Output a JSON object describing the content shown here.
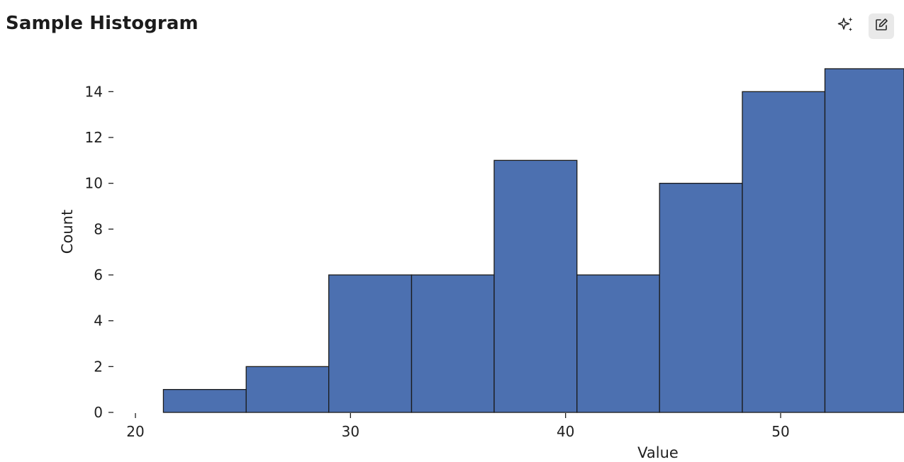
{
  "header": {
    "title": "Sample Histogram",
    "ai_button_icon": "sparkles-icon",
    "edit_button_icon": "edit-icon"
  },
  "chart_data": {
    "type": "bar",
    "title": "Sample Histogram",
    "xlabel": "Value",
    "ylabel": "Count",
    "bin_edges": [
      21.3,
      25.15,
      28.99,
      32.84,
      36.68,
      40.53,
      44.37,
      48.22,
      52.06,
      55.91
    ],
    "values": [
      1,
      2,
      6,
      6,
      11,
      6,
      10,
      14,
      15
    ],
    "xlim": [
      19.5,
      55.91
    ],
    "ylim": [
      0,
      15
    ],
    "xticks": [
      20,
      30,
      40,
      50
    ],
    "yticks": [
      0,
      2,
      4,
      6,
      8,
      10,
      12,
      14
    ],
    "bar_color": "#4c70b0",
    "edge_color": "#1a1a1a",
    "grid": false
  }
}
